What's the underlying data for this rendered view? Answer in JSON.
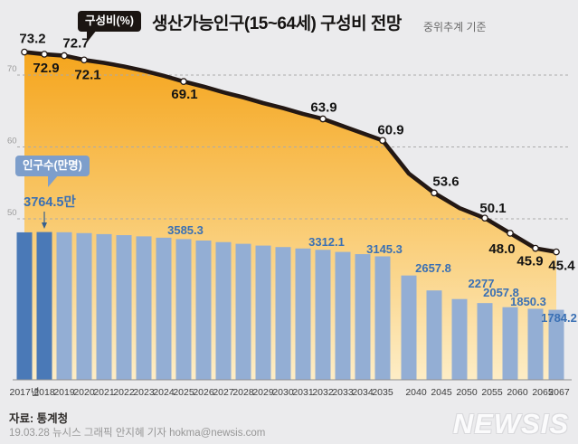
{
  "header": {
    "line_badge": "구성비(%)",
    "title": "생산가능인구(15~64세) 구성비 전망",
    "subtitle": "중위추계 기준"
  },
  "bar_badge": "인구수(만명)",
  "footer": {
    "source": "자료: 통계청",
    "credit": "19.03.28 뉴시스 그래픽 안지혜 기자 hokma@newsis.com",
    "logo": "NEWSIS"
  },
  "colors": {
    "background": "#ebebed",
    "area_top": "#f5a51d",
    "area_mid": "#f9c96d",
    "area_bottom": "#fdedc6",
    "trend_line": "#231814",
    "bar_actual": "#4a79b7",
    "bar_projection": "#93aed4",
    "bar_label_text": "#3a70b4",
    "line_label_text": "#141414",
    "grid": "#ababab",
    "axis": "#8f8f8f",
    "line_badge_bg": "#1b1512",
    "bar_badge_bg": "#7d9ecb"
  },
  "chart_data": {
    "type": "combo (line + bar)",
    "title": "생산가능인구(15~64세) 구성비 전망",
    "subtitle": "중위추계 기준",
    "categories": [
      "2017년",
      "2018",
      "2019",
      "2020",
      "2021",
      "2022",
      "2023",
      "2024",
      "2025",
      "2026",
      "2027",
      "2028",
      "2029",
      "2030",
      "2031",
      "2032",
      "2033",
      "2034",
      "2035",
      "2040",
      "2045",
      "2050",
      "2055",
      "2060",
      "2065",
      "2067"
    ],
    "line_series": {
      "name": "구성비(%)",
      "unit": "%",
      "axis_ticks": [
        70,
        60,
        50
      ],
      "values": [
        73.2,
        72.9,
        72.7,
        72.1,
        71.7,
        71.2,
        70.6,
        69.9,
        69.1,
        68.4,
        67.6,
        66.9,
        66.1,
        65.4,
        64.6,
        63.9,
        62.9,
        61.9,
        60.9,
        56.3,
        53.6,
        51.5,
        50.1,
        48.0,
        45.9,
        45.4
      ],
      "labeled_points": [
        {
          "category": "2017년",
          "label": "73.2",
          "placement": "above"
        },
        {
          "category": "2018",
          "label": "72.9",
          "placement": "below"
        },
        {
          "category": "2019",
          "label": "72.7",
          "placement": "above"
        },
        {
          "category": "2020",
          "label": "72.1",
          "placement": "below"
        },
        {
          "category": "2025",
          "label": "69.1",
          "placement": "below"
        },
        {
          "category": "2032",
          "label": "63.9",
          "placement": "above"
        },
        {
          "category": "2035",
          "label": "60.9",
          "placement": "above"
        },
        {
          "category": "2045",
          "label": "53.6",
          "placement": "above"
        },
        {
          "category": "2055",
          "label": "50.1",
          "placement": "above"
        },
        {
          "category": "2060",
          "label": "48.0",
          "placement": "below"
        },
        {
          "category": "2065",
          "label": "45.9",
          "placement": "below"
        },
        {
          "category": "2067",
          "label": "45.4",
          "placement": "below"
        }
      ]
    },
    "bar_series": {
      "name": "인구수(만명)",
      "unit": "만명",
      "actual_years_count": 2,
      "values": [
        3757,
        3764.5,
        3759,
        3738,
        3712,
        3686,
        3655,
        3621,
        3585.3,
        3548,
        3508,
        3465,
        3420,
        3382,
        3346,
        3312.1,
        3258,
        3202,
        3145.3,
        2657.8,
        2277,
        2057.8,
        1955,
        1850.3,
        1810,
        1784.2
      ],
      "labeled_bars": [
        {
          "category": "2018",
          "label": "3764.5만",
          "callout": true
        },
        {
          "category": "2025",
          "label": "3585.3"
        },
        {
          "category": "2032",
          "label": "3312.1"
        },
        {
          "category": "2035",
          "label": "3145.3"
        },
        {
          "category": "2040",
          "label": "2657.8"
        },
        {
          "category": "2045",
          "label": "2277"
        },
        {
          "category": "2050",
          "label": "2057.8"
        },
        {
          "category": "2060",
          "label": "1850.3"
        },
        {
          "category": "2067",
          "label": "1784.2"
        }
      ]
    }
  }
}
